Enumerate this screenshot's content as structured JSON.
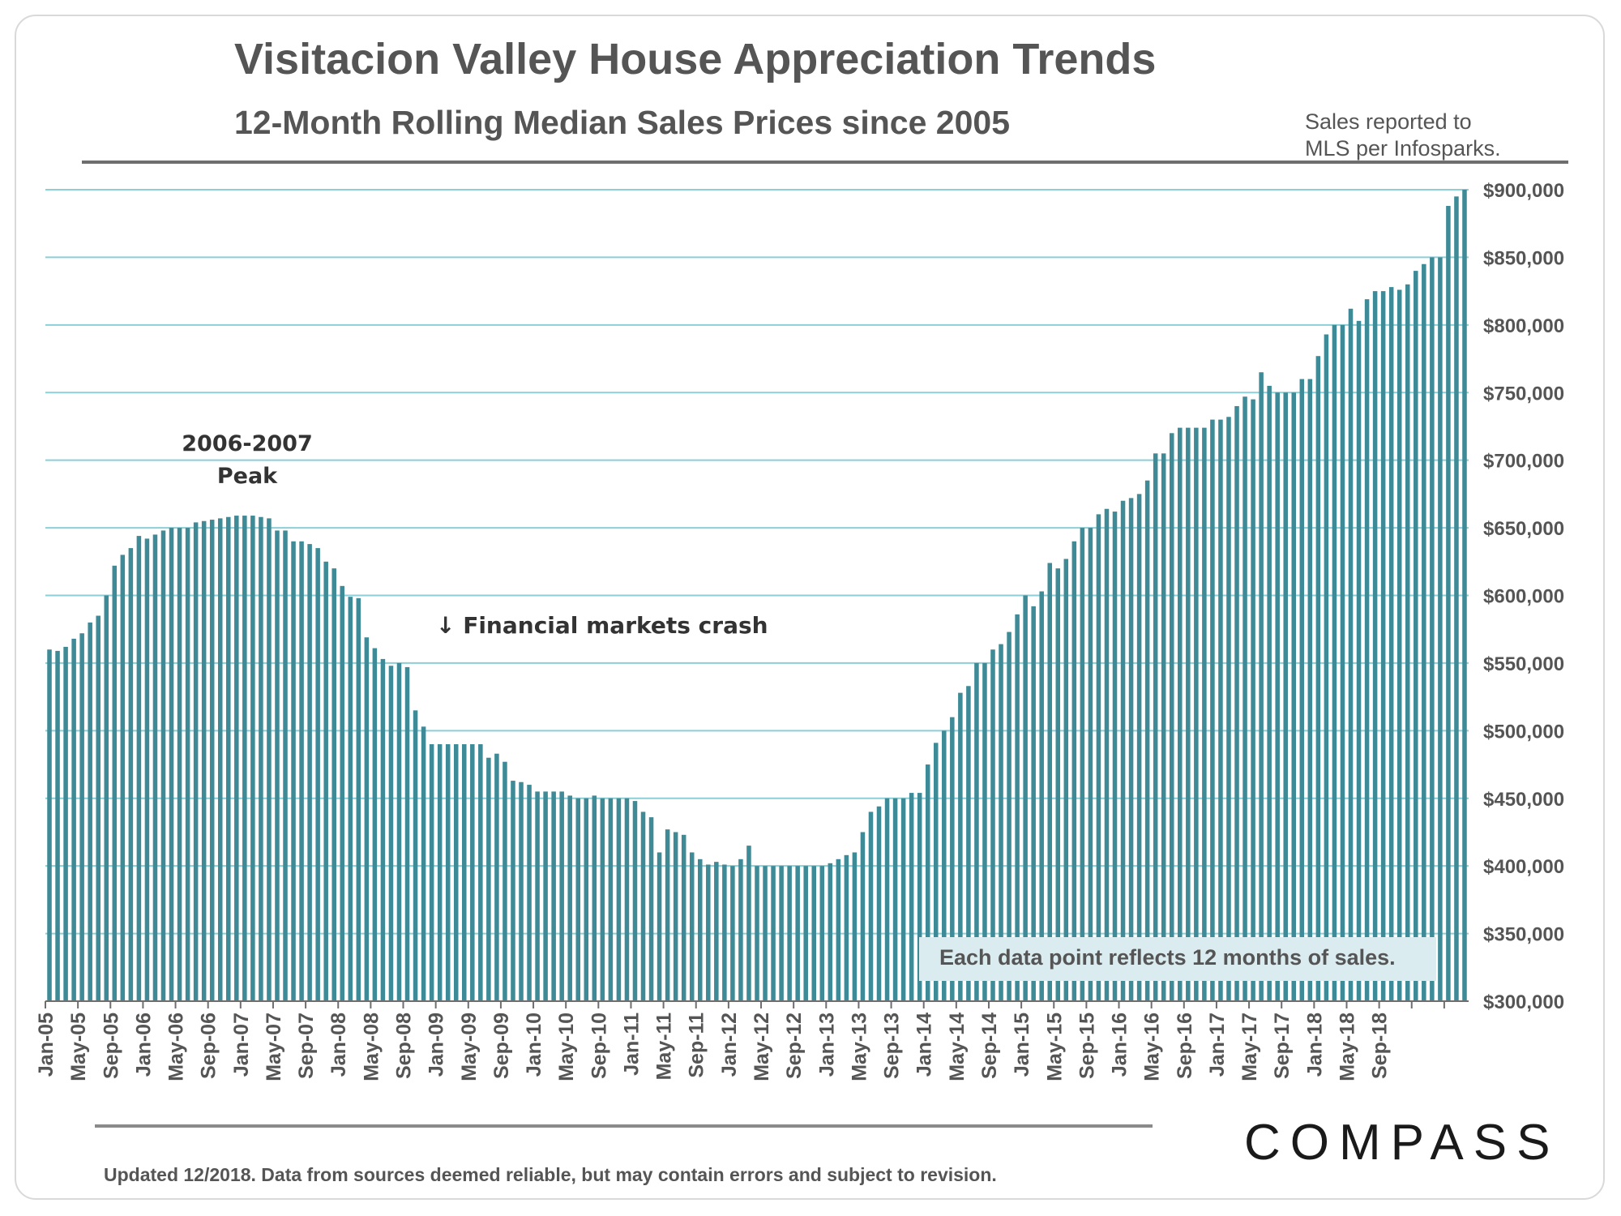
{
  "title": "Visitacion Valley House Appreciation Trends",
  "subtitle": "12-Month Rolling Median Sales Prices since 2005",
  "source_note": [
    "Sales reported to",
    "MLS per Infosparks."
  ],
  "callout": "Each data point reflects 12 months of sales.",
  "footer": "Updated 12/2018. Data from sources deemed reliable, but may contain errors and subject to revision.",
  "brand": "COMPASS",
  "colors": {
    "bar": "#3e8a96",
    "grid": "#8ccfd6",
    "axis": "#6e6e6e",
    "text": "#555555"
  },
  "chart_data": {
    "type": "bar",
    "title": "Visitacion Valley House Appreciation Trends",
    "subtitle": "12-Month Rolling Median Sales Prices since 2005",
    "xlabel": "",
    "ylabel": "",
    "ylim": [
      300000,
      900000
    ],
    "yticks": [
      300000,
      350000,
      400000,
      450000,
      500000,
      550000,
      600000,
      650000,
      700000,
      750000,
      800000,
      850000,
      900000
    ],
    "ytick_labels": [
      "$300,000",
      "$350,000",
      "$400,000",
      "$450,000",
      "$500,000",
      "$550,000",
      "$600,000",
      "$650,000",
      "$700,000",
      "$750,000",
      "$800,000",
      "$850,000",
      "$900,000"
    ],
    "xtick_labels": [
      "Jan-05",
      "May-05",
      "Sep-05",
      "Jan-06",
      "May-06",
      "Sep-06",
      "Jan-07",
      "May-07",
      "Sep-07",
      "Jan-08",
      "May-08",
      "Sep-08",
      "Jan-09",
      "May-09",
      "Sep-09",
      "Jan-10",
      "May-10",
      "Sep-10",
      "Jan-11",
      "May-11",
      "Sep-11",
      "Jan-12",
      "May-12",
      "Sep-12",
      "Jan-13",
      "May-13",
      "Sep-13",
      "Jan-14",
      "May-14",
      "Sep-14",
      "Jan-15",
      "May-15",
      "Sep-15",
      "Jan-16",
      "May-16",
      "Sep-16",
      "Jan-17",
      "May-17",
      "Sep-17",
      "Jan-18",
      "May-18",
      "Sep-18"
    ],
    "xtick_every": 4,
    "start_month": "Jan-05",
    "annotations": [
      {
        "text_lines": [
          "2006-2007",
          "Peak"
        ]
      },
      {
        "text": "↓ Financial markets crash"
      }
    ],
    "grid": true,
    "values": [
      560000,
      559000,
      562000,
      568000,
      572000,
      580000,
      585000,
      600000,
      622000,
      630000,
      635000,
      644000,
      642000,
      645000,
      648000,
      650000,
      650000,
      650000,
      654000,
      655000,
      656000,
      657000,
      658000,
      659000,
      659000,
      659000,
      658000,
      657000,
      648000,
      648000,
      640000,
      640000,
      638000,
      635000,
      625000,
      620000,
      607000,
      599000,
      598000,
      569000,
      561000,
      553000,
      548000,
      550000,
      547000,
      515000,
      503000,
      490000,
      490000,
      490000,
      490000,
      490000,
      490000,
      490000,
      480000,
      483000,
      477000,
      463000,
      462000,
      460000,
      455000,
      455000,
      455000,
      455000,
      452000,
      450000,
      450000,
      452000,
      450000,
      450000,
      450000,
      450000,
      448000,
      440000,
      436000,
      410000,
      427000,
      425000,
      423000,
      410000,
      405000,
      401000,
      403000,
      401000,
      400000,
      405000,
      415000,
      400000,
      400000,
      400000,
      400000,
      400000,
      400000,
      400000,
      400000,
      400000,
      402000,
      405000,
      408000,
      410000,
      425000,
      440000,
      444000,
      450000,
      450000,
      450000,
      454000,
      454000,
      475000,
      491000,
      500000,
      510000,
      528000,
      533000,
      550000,
      550000,
      560000,
      564000,
      573000,
      586000,
      600000,
      592000,
      603000,
      624000,
      620000,
      627000,
      640000,
      650000,
      650000,
      660000,
      664000,
      662000,
      670000,
      672000,
      675000,
      685000,
      705000,
      705000,
      720000,
      724000,
      724000,
      724000,
      724000,
      730000,
      730000,
      732000,
      740000,
      747000,
      745000,
      765000,
      755000,
      750000,
      750000,
      750000,
      760000,
      760000,
      777000,
      793000,
      800000,
      800000,
      812000,
      803000,
      819000,
      825000,
      825000,
      828000,
      826000,
      830000,
      840000,
      845000,
      850000,
      850000,
      888000,
      895000,
      900000
    ]
  }
}
